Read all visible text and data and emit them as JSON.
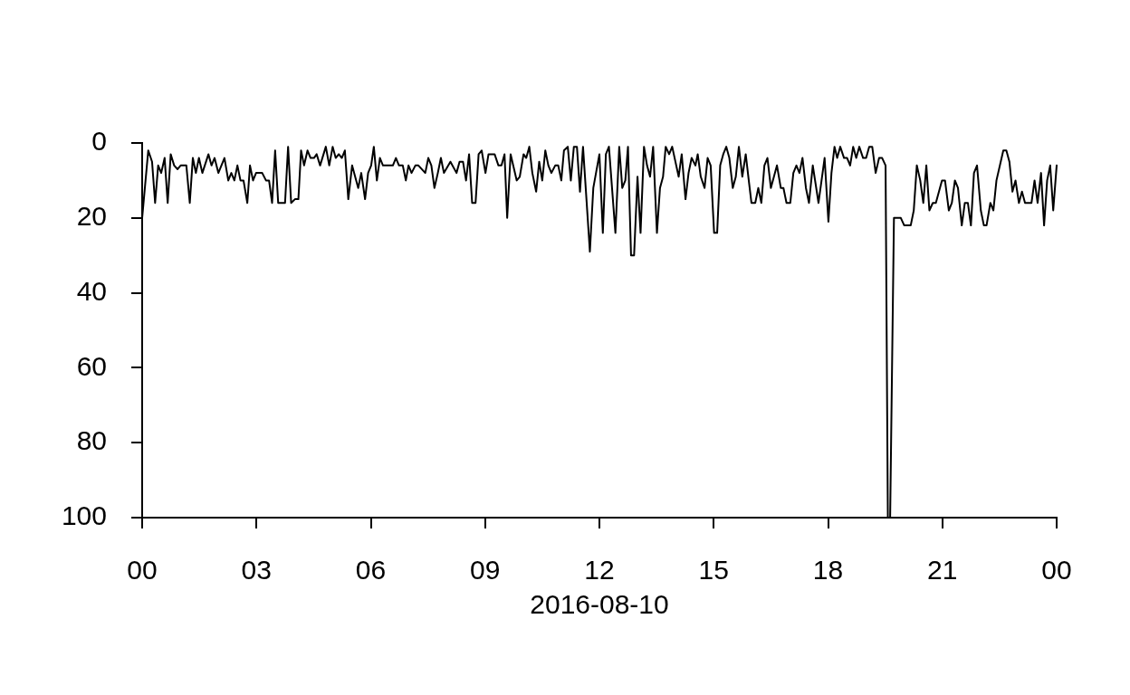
{
  "chart_data": {
    "type": "line",
    "xlabel": "2016-08-10",
    "color": "#000000",
    "x": [
      0,
      0.16,
      0.26,
      0.34,
      0.42,
      0.5,
      0.59,
      0.67,
      0.75,
      0.84,
      0.93,
      1.01,
      1.16,
      1.25,
      1.33,
      1.41,
      1.49,
      1.58,
      1.74,
      1.82,
      1.9,
      2,
      2.16,
      2.26,
      2.34,
      2.42,
      2.5,
      2.58,
      2.66,
      2.76,
      2.83,
      2.91,
      2.99,
      3.15,
      3.25,
      3.33,
      3.41,
      3.49,
      3.57,
      3.75,
      3.83,
      3.91,
      4.01,
      4.1,
      4.17,
      4.25,
      4.34,
      4.42,
      4.51,
      4.58,
      4.67,
      4.82,
      4.91,
      5,
      5.08,
      5.16,
      5.24,
      5.32,
      5.41,
      5.51,
      5.59,
      5.67,
      5.75,
      5.85,
      5.93,
      6.01,
      6.08,
      6.16,
      6.24,
      6.32,
      6.58,
      6.66,
      6.74,
      6.84,
      6.92,
      6.99,
      7.07,
      7.17,
      7.25,
      7.43,
      7.51,
      7.59,
      7.67,
      7.76,
      7.84,
      7.92,
      8.09,
      8.25,
      8.33,
      8.42,
      8.5,
      8.58,
      8.66,
      8.75,
      8.83,
      8.91,
      9.01,
      9.09,
      9.25,
      9.35,
      9.43,
      9.51,
      9.58,
      9.67,
      9.83,
      9.91,
      10.01,
      10.08,
      10.16,
      10.24,
      10.34,
      10.42,
      10.5,
      10.58,
      10.66,
      10.74,
      10.84,
      10.92,
      11,
      11.07,
      11.17,
      11.25,
      11.33,
      11.41,
      11.49,
      11.57,
      11.75,
      11.84,
      12,
      12.09,
      12.17,
      12.25,
      12.42,
      12.52,
      12.6,
      12.68,
      12.75,
      12.83,
      12.91,
      13,
      13.08,
      13.17,
      13.25,
      13.33,
      13.41,
      13.51,
      13.59,
      13.67,
      13.74,
      13.83,
      13.91,
      14.08,
      14.16,
      14.26,
      14.34,
      14.42,
      14.52,
      14.58,
      14.66,
      14.76,
      14.84,
      14.92,
      15.01,
      15.09,
      15.17,
      15.25,
      15.33,
      15.41,
      15.5,
      15.58,
      15.66,
      15.75,
      15.84,
      15.92,
      15.99,
      16.09,
      16.17,
      16.25,
      16.33,
      16.41,
      16.5,
      16.58,
      16.66,
      16.76,
      16.83,
      16.91,
      17.01,
      17.09,
      17.17,
      17.25,
      17.33,
      17.42,
      17.5,
      17.6,
      17.75,
      17.91,
      18.01,
      18.09,
      18.17,
      18.24,
      18.32,
      18.42,
      18.5,
      18.58,
      18.66,
      18.74,
      18.82,
      18.92,
      19,
      19.08,
      19.16,
      19.25,
      19.34,
      19.42,
      19.51,
      19.57,
      19.63,
      19.73,
      19.91,
      20,
      20.17,
      20.25,
      20.33,
      20.42,
      20.5,
      20.58,
      20.66,
      20.75,
      20.83,
      20.99,
      21.07,
      21.17,
      21.25,
      21.33,
      21.41,
      21.51,
      21.59,
      21.67,
      21.75,
      21.83,
      21.91,
      22.01,
      22.09,
      22.16,
      22.26,
      22.34,
      22.42,
      22.6,
      22.68,
      22.76,
      22.84,
      22.92,
      23.01,
      23.09,
      23.17,
      23.34,
      23.42,
      23.5,
      23.59,
      23.67,
      23.75,
      23.83,
      23.91,
      24
    ],
    "values": [
      20,
      2,
      5,
      16,
      6,
      8,
      4,
      16,
      3,
      6,
      7,
      6,
      6,
      16,
      4,
      8,
      4,
      8,
      3,
      6,
      4,
      8,
      4,
      10,
      8,
      10,
      6,
      10,
      10,
      16,
      6,
      10,
      8,
      8,
      10,
      10,
      16,
      2,
      16,
      16,
      1,
      16,
      15,
      15,
      2,
      6,
      2,
      4,
      4,
      3,
      6,
      1,
      6,
      1,
      4,
      3,
      4,
      2,
      15,
      6,
      9,
      12,
      8,
      15,
      8,
      6,
      1,
      10,
      4,
      6,
      6,
      4,
      6,
      6,
      10,
      6,
      8,
      6,
      6,
      8,
      4,
      6,
      12,
      8,
      4,
      8,
      5,
      8,
      5,
      5,
      10,
      3,
      16,
      16,
      3,
      2,
      8,
      3,
      3,
      6,
      6,
      3,
      20,
      3,
      10,
      9,
      3,
      4,
      1,
      8,
      13,
      5,
      10,
      2,
      6,
      8,
      6,
      6,
      10,
      2,
      1,
      10,
      1,
      1,
      13,
      1,
      29,
      12,
      3,
      24,
      3,
      1,
      24,
      1,
      12,
      10,
      1,
      30,
      30,
      9,
      24,
      1,
      6,
      9,
      1,
      24,
      12,
      9,
      1,
      3,
      1,
      9,
      3,
      15,
      8,
      4,
      6,
      3,
      9,
      12,
      4,
      6,
      24,
      24,
      6,
      3,
      1,
      4,
      12,
      9,
      1,
      9,
      3,
      10,
      16,
      16,
      12,
      16,
      6,
      4,
      12,
      9,
      6,
      12,
      12,
      16,
      16,
      8,
      6,
      8,
      4,
      12,
      16,
      6,
      16,
      4,
      21,
      8,
      1,
      4,
      1,
      4,
      4,
      6,
      1,
      4,
      1,
      4,
      4,
      1,
      1,
      8,
      4,
      4,
      6,
      100,
      100,
      20,
      20,
      22,
      22,
      18,
      6,
      10,
      16,
      6,
      18,
      16,
      16,
      10,
      10,
      18,
      16,
      10,
      12,
      22,
      16,
      16,
      22,
      8,
      6,
      18,
      22,
      22,
      16,
      18,
      10,
      2,
      2,
      5,
      13,
      10,
      16,
      13,
      16,
      16,
      10,
      16,
      8,
      22,
      10,
      6,
      18,
      6
    ],
    "xlim": [
      0,
      24
    ],
    "xticks": [
      {
        "value": 0,
        "label": "00"
      },
      {
        "value": 3,
        "label": "03"
      },
      {
        "value": 6,
        "label": "06"
      },
      {
        "value": 9,
        "label": "09"
      },
      {
        "value": 12,
        "label": "12"
      },
      {
        "value": 15,
        "label": "15"
      },
      {
        "value": 18,
        "label": "18"
      },
      {
        "value": 21,
        "label": "21"
      },
      {
        "value": 24,
        "label": "00"
      }
    ],
    "ylim": [
      100,
      0
    ],
    "yticks": [
      0,
      20,
      40,
      60,
      80,
      100
    ]
  }
}
